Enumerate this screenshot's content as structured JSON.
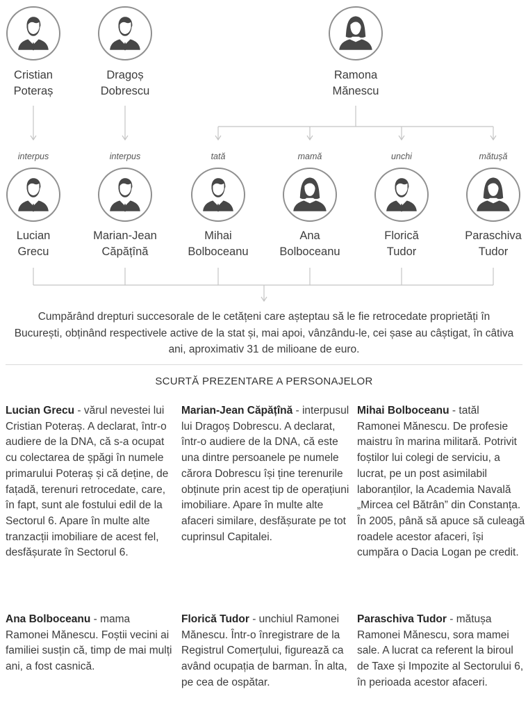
{
  "top_people": [
    {
      "first": "Cristian",
      "last": "Poteraș",
      "gender": "male"
    },
    {
      "first": "Dragoș",
      "last": "Dobrescu",
      "gender": "male"
    },
    {
      "first": "Ramona",
      "last": "Mănescu",
      "gender": "female"
    }
  ],
  "bottom_people": [
    {
      "role": "interpus",
      "first": "Lucian",
      "last": "Grecu",
      "gender": "male"
    },
    {
      "role": "interpus",
      "first": "Marian-Jean",
      "last": "Căpățînă",
      "gender": "male"
    },
    {
      "role": "tată",
      "first": "Mihai",
      "last": "Bolboceanu",
      "gender": "male"
    },
    {
      "role": "mamă",
      "first": "Ana",
      "last": "Bolboceanu",
      "gender": "female"
    },
    {
      "role": "unchi",
      "first": "Florică",
      "last": "Tudor",
      "gender": "male"
    },
    {
      "role": "mătușă",
      "first": "Paraschiva",
      "last": "Tudor",
      "gender": "female"
    }
  ],
  "summary": "Cumpărând drepturi succesorale de le cetățeni care așteptau să le fie retrocedate proprietăți în București, obținând respectivele active de la stat și, mai apoi, vânzându-le, cei șase au câștigat, în câtiva ani, aproximativ 31 de milioane de euro.",
  "section_title": "SCURTĂ PREZENTARE A PERSONAJELOR",
  "bios": [
    {
      "name": "Lucian Grecu",
      "text": " - vărul nevestei lui Cristian Poteraș. A declarat, într-o audiere de la DNA, că s-a ocupat cu colectarea de șpăgi în numele primarului Poteraș și că deține, de fațadă, terenuri retrocedate, care, în fapt, sunt ale fostului edil de la Sectorul 6. Apare în multe alte tranzacții imobiliare de acest fel, desfășurate în Sectorul 6."
    },
    {
      "name": "Marian-Jean Căpățînă",
      "text": " - interpusul lui Dragoș Dobrescu. A declarat, într-o audiere de la DNA, că este una dintre persoanele pe numele cărora Dobrescu își ține terenurile obținute prin acest tip de operațiuni imobiliare. Apare în multe alte afaceri similare, desfășurate pe tot cuprinsul Capitalei."
    },
    {
      "name": "Mihai Bolboceanu",
      "text": " - tatăl Ramonei Mănescu. De profesie maistru în marina militară. Potrivit foștilor lui colegi de serviciu, a lucrat, pe un post asimilabil laboranților, la Academia Navală „Mircea cel Bătrân” din Constanța. În 2005, până să apuce să culeagă roadele acestor afaceri, își cumpăra o Dacia Logan pe credit."
    },
    {
      "name": "Ana Bolboceanu",
      "text": " - mama Ramonei Mănescu. Foștii vecini ai familiei susțin că, timp de mai mulți ani, a fost casnică."
    },
    {
      "name": "Florică Tudor",
      "text": " - unchiul Ramonei Mănescu. Într-o înregistrare de la Registrul Comerțului, figurează ca având ocupația de barman. În alta, pe cea de ospătar."
    },
    {
      "name": "Paraschiva Tudor",
      "text": " - mătușa Ramonei Mănescu, sora mamei sale. A lucrat ca referent la biroul de Taxe și Impozite al Sectorului 6, în perioada acestor afaceri."
    }
  ]
}
